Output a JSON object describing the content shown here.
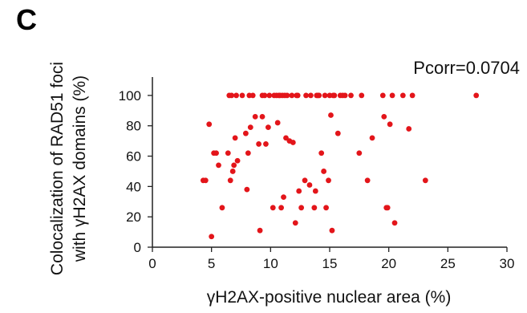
{
  "panel_label": "C",
  "chart_data": {
    "type": "scatter",
    "annotation": "Pcorr=0.0704",
    "xlabel": "γH2AX-positive nuclear area (%)",
    "ylabel_line1": "Colocalization of RAD51 foci",
    "ylabel_line2": "with γH2AX domains (%)",
    "xlim": [
      0,
      30
    ],
    "ylim": [
      0,
      110
    ],
    "xticks": [
      0,
      5,
      10,
      15,
      20,
      25,
      30
    ],
    "yticks": [
      0,
      20,
      40,
      60,
      80,
      100
    ],
    "grid": false,
    "point_color": "#e3151a",
    "x": [
      4.3,
      4.5,
      4.8,
      5.0,
      5.2,
      5.4,
      5.6,
      5.9,
      6.4,
      6.5,
      6.6,
      6.7,
      6.8,
      6.9,
      7.0,
      7.1,
      7.2,
      7.6,
      7.9,
      8.0,
      8.1,
      8.2,
      8.3,
      8.5,
      8.7,
      9.0,
      9.1,
      9.3,
      9.3,
      9.5,
      9.6,
      9.8,
      9.9,
      10.2,
      10.3,
      10.5,
      10.6,
      10.7,
      10.8,
      10.9,
      11.0,
      11.1,
      11.2,
      11.3,
      11.4,
      11.6,
      11.8,
      11.9,
      12.1,
      12.2,
      12.3,
      12.4,
      12.6,
      12.9,
      13.0,
      13.3,
      13.4,
      13.7,
      13.8,
      13.9,
      14.0,
      14.1,
      14.3,
      14.5,
      14.6,
      14.7,
      14.9,
      15.0,
      15.1,
      15.2,
      15.3,
      15.4,
      15.7,
      15.9,
      16.1,
      16.3,
      16.8,
      17.5,
      17.7,
      18.2,
      18.6,
      19.5,
      19.6,
      19.8,
      19.9,
      20.1,
      20.3,
      20.5,
      21.2,
      21.7,
      22.0,
      23.1,
      27.4
    ],
    "y": [
      44,
      44,
      81,
      7,
      62,
      62,
      54,
      26,
      62,
      100,
      44,
      100,
      50,
      54,
      72,
      100,
      57,
      100,
      75,
      38,
      62,
      100,
      79,
      100,
      86,
      68,
      11,
      100,
      86,
      100,
      68,
      79,
      100,
      26,
      100,
      100,
      82,
      100,
      100,
      26,
      100,
      33,
      100,
      72,
      100,
      70,
      100,
      69,
      16,
      100,
      100,
      37,
      26,
      44,
      100,
      41,
      100,
      26,
      37,
      100,
      100,
      100,
      62,
      50,
      100,
      26,
      44,
      100,
      87,
      11,
      100,
      100,
      75,
      100,
      100,
      100,
      100,
      62,
      100,
      44,
      72,
      100,
      86,
      26,
      26,
      81,
      100,
      16,
      100,
      78,
      100,
      44,
      100
    ]
  }
}
